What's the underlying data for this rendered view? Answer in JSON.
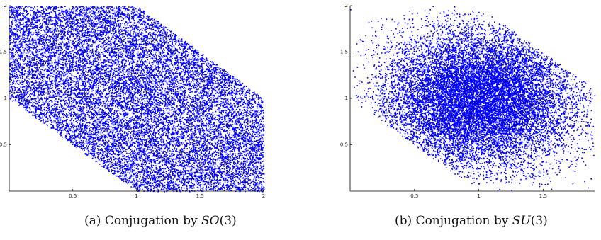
{
  "chart_data": [
    {
      "type": "scatter",
      "title": "",
      "xlabel": "",
      "ylabel": "",
      "xlim": [
        0,
        2
      ],
      "ylim": [
        0,
        2
      ],
      "x_ticks": [
        "0.5",
        "1",
        "1.5",
        "2"
      ],
      "y_ticks": [
        "0.5",
        "1",
        "1.5",
        "2"
      ],
      "marker_color": "#0000ff",
      "point_count": 16000,
      "distribution": "uniform",
      "region": {
        "description_vertices": [
          [
            0,
            1
          ],
          [
            0,
            2
          ],
          [
            1,
            2
          ],
          [
            2,
            1
          ],
          [
            2,
            0
          ],
          [
            1,
            0
          ]
        ]
      },
      "caption": {
        "label": "(a)",
        "text": "Conjugation by",
        "math": "SO",
        "arg": "(3)"
      }
    },
    {
      "type": "scatter",
      "title": "",
      "xlabel": "",
      "ylabel": "",
      "xlim": [
        0,
        1.9
      ],
      "ylim": [
        0,
        2
      ],
      "x_ticks": [
        "0.5",
        "1",
        "1.5"
      ],
      "y_ticks": [
        "0.5",
        "1",
        "1.5",
        "2"
      ],
      "marker_color": "#0000ff",
      "point_count": 14000,
      "distribution": "concentrated near (1, 1)",
      "region": {
        "description_vertices": [
          [
            0,
            1
          ],
          [
            0,
            2
          ],
          [
            1,
            2
          ],
          [
            2,
            1
          ],
          [
            2,
            0
          ],
          [
            1,
            0
          ]
        ]
      },
      "caption": {
        "label": "(b)",
        "text": "Conjugation by",
        "math": "SU",
        "arg": "(3)"
      }
    }
  ]
}
